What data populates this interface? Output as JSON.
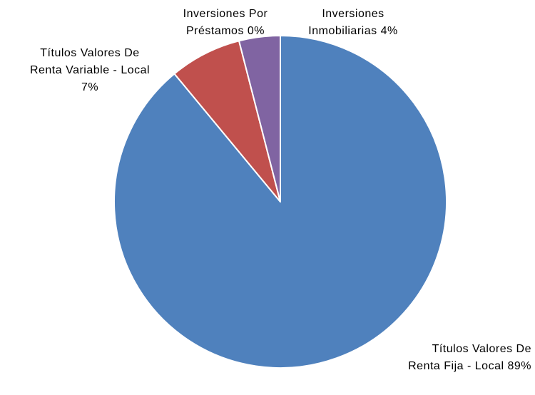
{
  "chart_data": {
    "type": "pie",
    "categories": [
      "Títulos Valores De Renta Fija - Local",
      "Títulos Valores De Renta Variable - Local",
      "Inversiones Por Préstamos",
      "Inversiones Inmobiliarias"
    ],
    "values": [
      89,
      7,
      0,
      4
    ],
    "value_labels": [
      "89%",
      "7%",
      "0%",
      "4%"
    ],
    "colors": [
      "#4f81bd",
      "#c0504d",
      "#9bbb59",
      "#8064a2"
    ]
  }
}
